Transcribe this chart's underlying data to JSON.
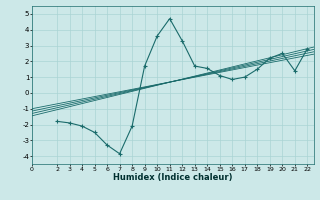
{
  "xlabel": "Humidex (Indice chaleur)",
  "bg_color": "#cce8e8",
  "grid_color": "#aad4d4",
  "line_color": "#1a6b6b",
  "xlim": [
    0,
    22.5
  ],
  "ylim": [
    -4.5,
    5.5
  ],
  "xticks": [
    0,
    2,
    3,
    4,
    5,
    6,
    7,
    8,
    9,
    10,
    11,
    12,
    13,
    14,
    15,
    16,
    17,
    18,
    19,
    20,
    21,
    22
  ],
  "yticks": [
    -4,
    -3,
    -2,
    -1,
    0,
    1,
    2,
    3,
    4,
    5
  ],
  "data_x": [
    2,
    3,
    4,
    5,
    6,
    7,
    8,
    9,
    10,
    11,
    12,
    13,
    14,
    15,
    16,
    17,
    18,
    19,
    20,
    21,
    22
  ],
  "data_y": [
    -1.8,
    -1.9,
    -2.1,
    -2.5,
    -3.3,
    -3.85,
    -2.1,
    1.7,
    3.6,
    4.7,
    3.3,
    1.7,
    1.55,
    1.1,
    0.85,
    1.0,
    1.5,
    2.2,
    2.5,
    1.4,
    2.8
  ],
  "reg_lines": [
    {
      "x": [
        0,
        22.5
      ],
      "y": [
        -1.3,
        2.75
      ]
    },
    {
      "x": [
        0,
        22.5
      ],
      "y": [
        -1.15,
        2.6
      ]
    },
    {
      "x": [
        0,
        22.5
      ],
      "y": [
        -1.0,
        2.45
      ]
    },
    {
      "x": [
        0,
        22.5
      ],
      "y": [
        -1.45,
        2.9
      ]
    }
  ]
}
